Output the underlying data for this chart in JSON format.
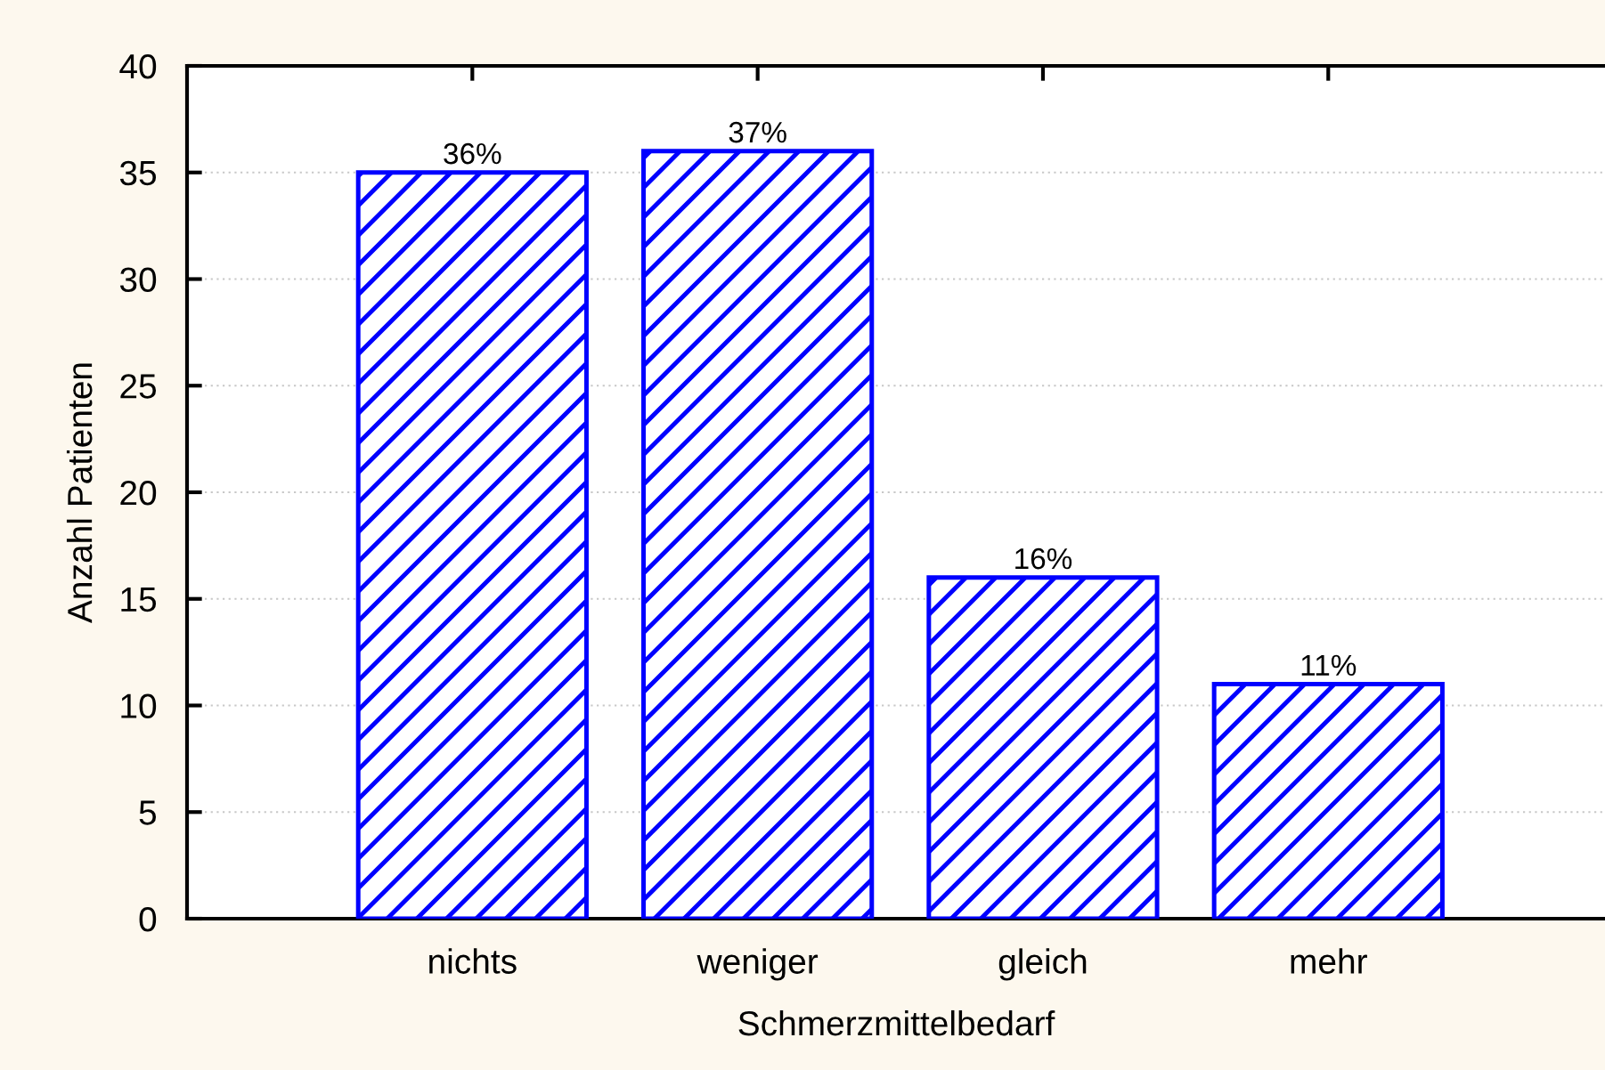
{
  "chart_data": {
    "type": "bar",
    "xlabel": "Schmerzmittelbedarf",
    "ylabel": "Anzahl Patienten",
    "categories": [
      "nichts",
      "weniger",
      "gleich",
      "mehr"
    ],
    "values": [
      35,
      36,
      16,
      11
    ],
    "annotations": [
      {
        "text": "36%",
        "x": "nichts",
        "y": 35
      },
      {
        "text": "37%",
        "x": "weniger",
        "y": 36
      },
      {
        "text": "16%",
        "x": "gleich",
        "y": 16
      },
      {
        "text": "11%",
        "x": "mehr",
        "y": 11
      }
    ],
    "color": "#0000ff",
    "ylim": [
      0,
      40
    ],
    "yticks": [
      0,
      5,
      10,
      15,
      20,
      25,
      30,
      35,
      40
    ],
    "grid": "y"
  }
}
